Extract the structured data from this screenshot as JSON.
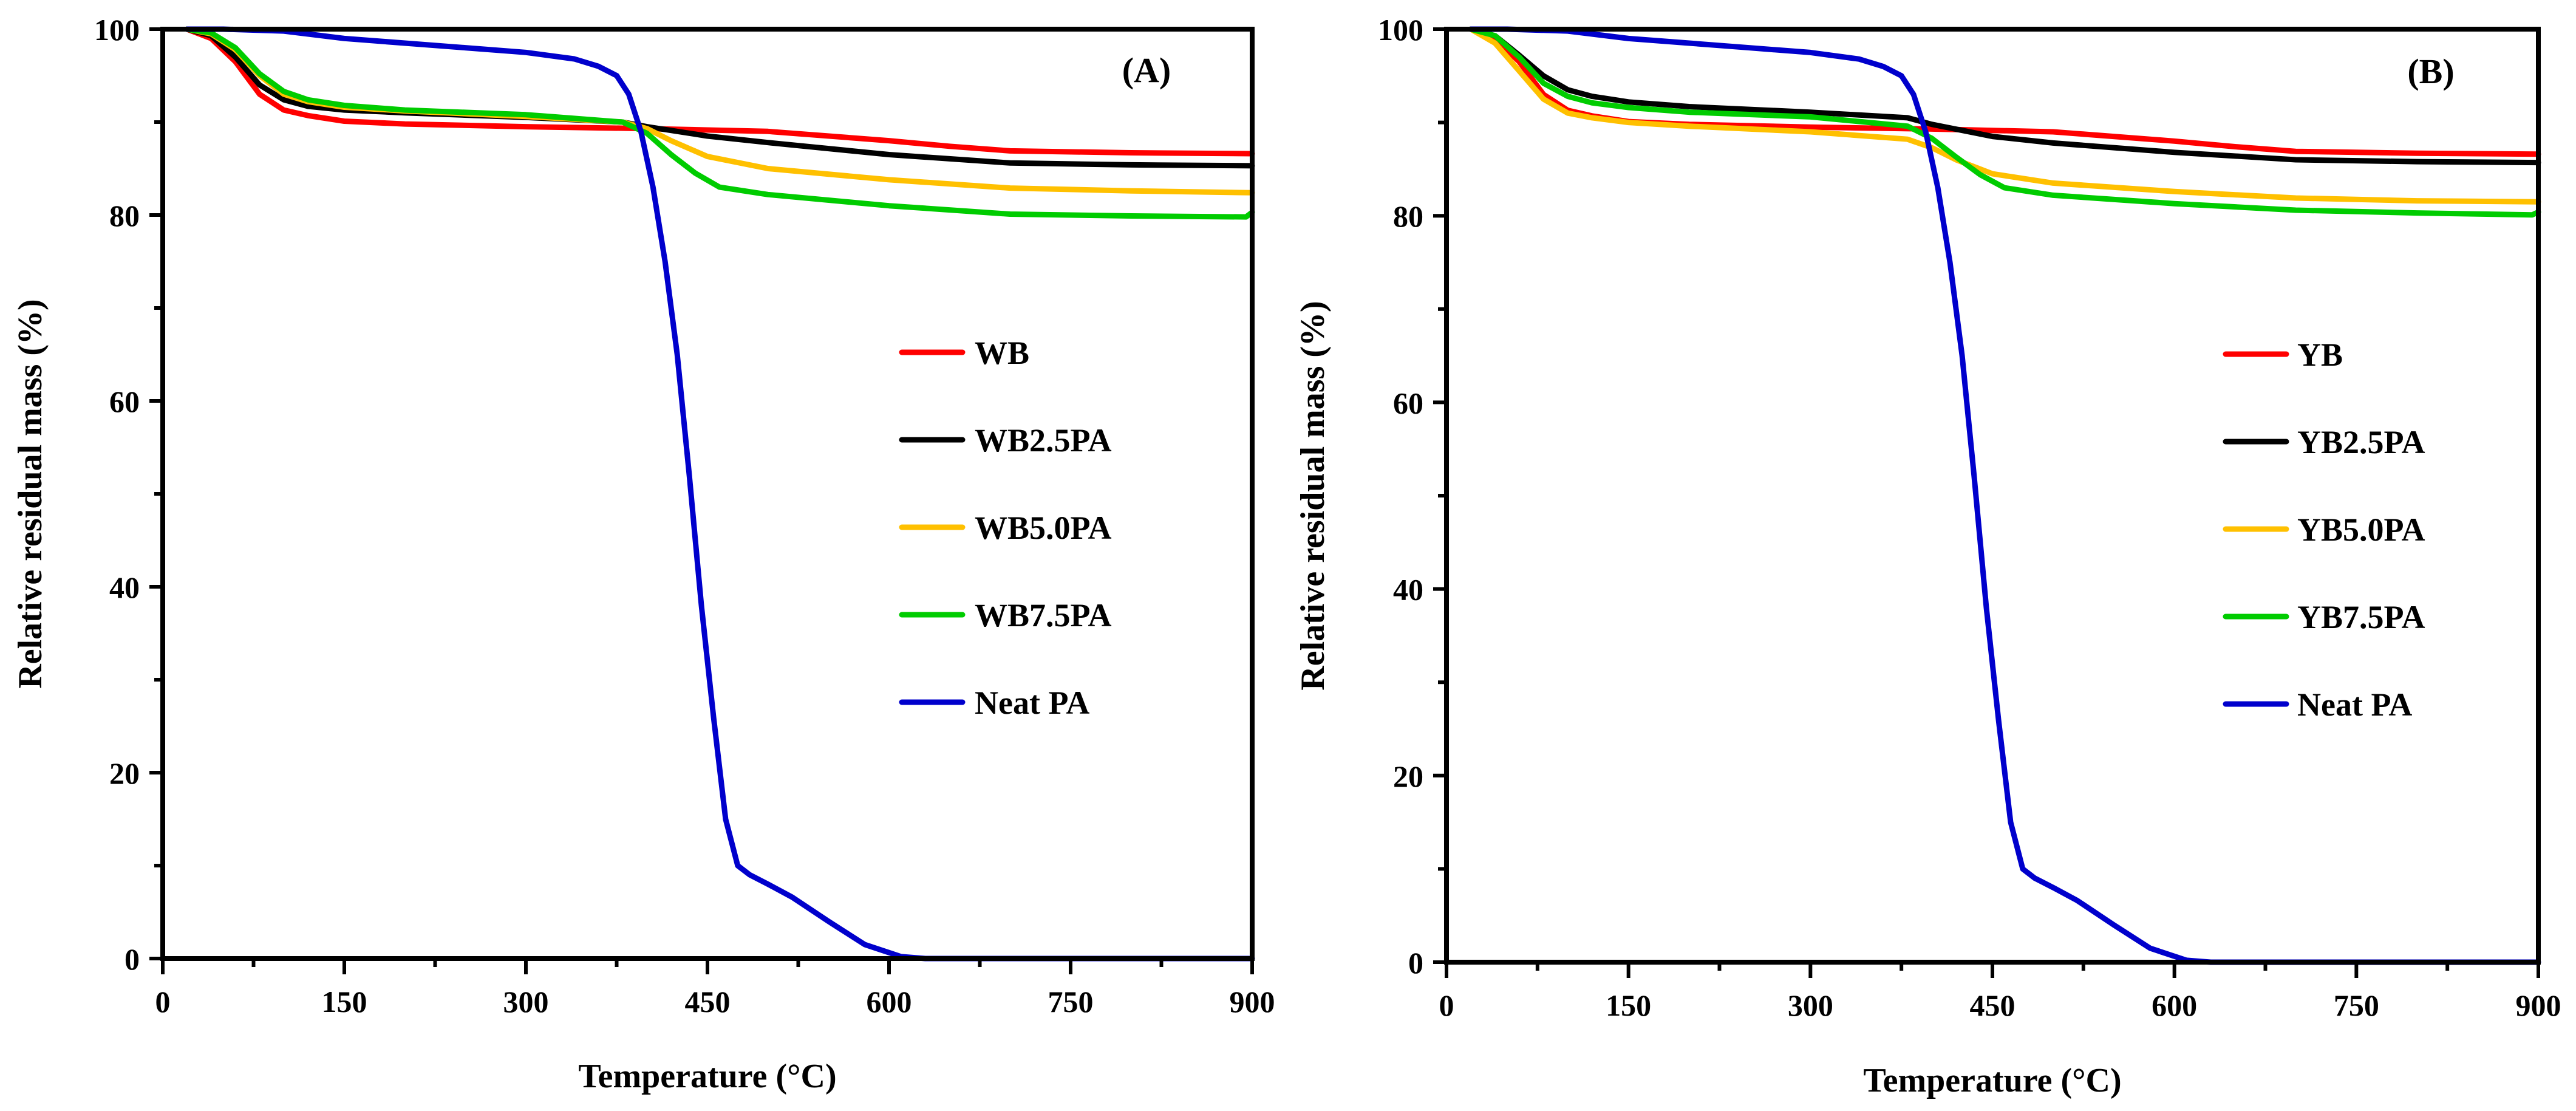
{
  "chart_data": [
    {
      "type": "line",
      "panel_label": "(A)",
      "xlabel": "Temperature (°C)",
      "ylabel": "Relative residual mass (%)",
      "xlim": [
        0,
        900
      ],
      "ylim": [
        0,
        100
      ],
      "xticks": [
        0,
        150,
        300,
        450,
        600,
        750,
        900
      ],
      "xtick_labels": [
        "0",
        "150",
        "300",
        "450",
        "600",
        "750",
        "900"
      ],
      "yticks": [
        0,
        20,
        40,
        60,
        80,
        100
      ],
      "ytick_labels": [
        "0",
        "20",
        "40",
        "60",
        "80",
        "100"
      ],
      "grid": false,
      "legend_position": "center-right",
      "series": [
        {
          "name": "WB",
          "color": "#ff0000",
          "x": [
            20,
            40,
            60,
            80,
            100,
            120,
            150,
            200,
            300,
            400,
            500,
            600,
            650,
            700,
            800,
            900
          ],
          "y": [
            100,
            99,
            96.5,
            93,
            91.3,
            90.7,
            90.1,
            89.8,
            89.5,
            89.3,
            89.0,
            88.0,
            87.4,
            86.9,
            86.7,
            86.6
          ]
        },
        {
          "name": "WB2.5PA",
          "color": "#000000",
          "x": [
            20,
            40,
            60,
            80,
            100,
            120,
            150,
            200,
            300,
            380,
            400,
            450,
            500,
            600,
            700,
            800,
            900
          ],
          "y": [
            100,
            99.3,
            97,
            94,
            92.4,
            91.7,
            91.3,
            91.0,
            90.5,
            90.0,
            89.5,
            88.5,
            87.8,
            86.5,
            85.6,
            85.4,
            85.3
          ]
        },
        {
          "name": "WB5.0PA",
          "color": "#ffc000",
          "x": [
            20,
            40,
            60,
            80,
            100,
            120,
            150,
            200,
            300,
            380,
            400,
            420,
            450,
            500,
            600,
            700,
            800,
            900
          ],
          "y": [
            100,
            99.5,
            97.8,
            95,
            93.0,
            92.2,
            91.6,
            91.2,
            90.6,
            90.0,
            89.3,
            88.0,
            86.3,
            85.0,
            83.8,
            82.9,
            82.6,
            82.4
          ]
        },
        {
          "name": "WB7.5PA",
          "color": "#00cc00",
          "x": [
            20,
            40,
            60,
            80,
            100,
            120,
            150,
            200,
            300,
            380,
            400,
            420,
            440,
            460,
            500,
            600,
            700,
            800,
            895,
            900
          ],
          "y": [
            100,
            99.6,
            98,
            95.2,
            93.3,
            92.4,
            91.8,
            91.3,
            90.8,
            90.0,
            88.8,
            86.5,
            84.5,
            83.0,
            82.2,
            81.0,
            80.1,
            79.9,
            79.8,
            80.3
          ]
        },
        {
          "name": "Neat PA",
          "color": "#0000cc",
          "x": [
            20,
            50,
            100,
            150,
            200,
            250,
            300,
            340,
            360,
            375,
            385,
            395,
            405,
            415,
            425,
            435,
            445,
            455,
            465,
            475,
            485,
            500,
            520,
            550,
            580,
            610,
            630,
            700,
            800,
            900
          ],
          "y": [
            100,
            100,
            99.8,
            99.0,
            98.5,
            98.0,
            97.5,
            96.8,
            96.0,
            95.0,
            93.0,
            89.0,
            83.0,
            75.0,
            65.0,
            52.0,
            38.0,
            26.0,
            15.0,
            10.0,
            9.0,
            8.0,
            6.6,
            4.0,
            1.5,
            0.2,
            0,
            0,
            0,
            0
          ]
        }
      ]
    },
    {
      "type": "line",
      "panel_label": "(B)",
      "xlabel": "Temperature (°C)",
      "ylabel": "Relative residual mass (%)",
      "xlim": [
        0,
        900
      ],
      "ylim": [
        0,
        100
      ],
      "xticks": [
        0,
        150,
        300,
        450,
        600,
        750,
        900
      ],
      "xtick_labels": [
        "0",
        "150",
        "300",
        "450",
        "600",
        "750",
        "900"
      ],
      "yticks": [
        0,
        20,
        40,
        60,
        80,
        100
      ],
      "ytick_labels": [
        "0",
        "20",
        "40",
        "60",
        "80",
        "100"
      ],
      "grid": false,
      "legend_position": "center-right",
      "series": [
        {
          "name": "YB",
          "color": "#ff0000",
          "x": [
            20,
            40,
            60,
            80,
            100,
            120,
            150,
            200,
            300,
            400,
            500,
            600,
            650,
            700,
            800,
            900
          ],
          "y": [
            100,
            99,
            96.5,
            93,
            91.3,
            90.7,
            90.1,
            89.8,
            89.5,
            89.3,
            89.0,
            88.0,
            87.4,
            86.9,
            86.7,
            86.6
          ]
        },
        {
          "name": "YB2.5PA",
          "color": "#000000",
          "x": [
            20,
            40,
            60,
            80,
            100,
            120,
            150,
            200,
            300,
            380,
            400,
            450,
            500,
            600,
            700,
            800,
            900
          ],
          "y": [
            100,
            99.3,
            97.2,
            95,
            93.5,
            92.8,
            92.2,
            91.7,
            91.1,
            90.5,
            89.8,
            88.5,
            87.8,
            86.8,
            86.0,
            85.8,
            85.7
          ]
        },
        {
          "name": "YB5.0PA",
          "color": "#ffc000",
          "x": [
            20,
            40,
            60,
            80,
            100,
            120,
            150,
            200,
            300,
            380,
            400,
            420,
            450,
            500,
            600,
            700,
            800,
            900
          ],
          "y": [
            100,
            98.5,
            95.5,
            92.5,
            91.0,
            90.5,
            90.0,
            89.6,
            89.0,
            88.2,
            87.3,
            86.0,
            84.5,
            83.5,
            82.6,
            81.9,
            81.6,
            81.5
          ]
        },
        {
          "name": "YB7.5PA",
          "color": "#00cc00",
          "x": [
            20,
            40,
            60,
            80,
            100,
            120,
            150,
            200,
            300,
            380,
            400,
            420,
            440,
            460,
            500,
            600,
            700,
            800,
            895,
            900
          ],
          "y": [
            100,
            99.3,
            97,
            94.2,
            92.8,
            92.1,
            91.6,
            91.1,
            90.6,
            89.6,
            88.3,
            86.3,
            84.4,
            83.0,
            82.2,
            81.3,
            80.6,
            80.3,
            80.1,
            80.4
          ]
        },
        {
          "name": "Neat PA",
          "color": "#0000cc",
          "x": [
            20,
            50,
            100,
            150,
            200,
            250,
            300,
            340,
            360,
            375,
            385,
            395,
            405,
            415,
            425,
            435,
            445,
            455,
            465,
            475,
            485,
            500,
            520,
            550,
            580,
            610,
            630,
            700,
            800,
            900
          ],
          "y": [
            100,
            100,
            99.8,
            99.0,
            98.5,
            98.0,
            97.5,
            96.8,
            96.0,
            95.0,
            93.0,
            89.0,
            83.0,
            75.0,
            65.0,
            52.0,
            38.0,
            26.0,
            15.0,
            10.0,
            9.0,
            8.0,
            6.6,
            4.0,
            1.5,
            0.2,
            0,
            0,
            0,
            0
          ]
        }
      ]
    }
  ]
}
